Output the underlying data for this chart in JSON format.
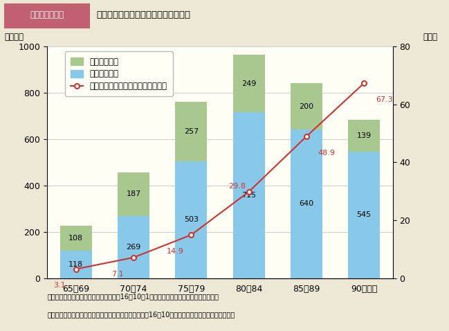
{
  "title_box": "第１－４－２図",
  "title_main": "年齢階級別の要支援・要介護認定者数",
  "categories": [
    "65～69",
    "70～74",
    "75～79",
    "80～84",
    "85～89",
    "90歳以上"
  ],
  "female_values": [
    118,
    269,
    503,
    715,
    640,
    545
  ],
  "male_values": [
    108,
    187,
    257,
    249,
    200,
    139
  ],
  "ratio_values": [
    3.1,
    7.1,
    14.9,
    29.8,
    48.9,
    67.3
  ],
  "female_color": "#88c8e8",
  "male_color": "#a8c890",
  "line_color": "#cc3333",
  "bar_width": 0.55,
  "ylim_left": [
    0,
    1000
  ],
  "ylim_right": [
    0,
    80
  ],
  "yticks_left": [
    0,
    200,
    400,
    600,
    800,
    1000
  ],
  "yticks_right": [
    0,
    20,
    40,
    60,
    80
  ],
  "ylabel_left": "（千人）",
  "ylabel_right": "（％）",
  "legend_male": "男性（千人）",
  "legend_female": "女性（千人）",
  "legend_ratio": "総人口に占める認定者の割合（％）",
  "note1": "（備考）１．総務省「人口推計」（平成16年10月1日現在），厚生労働省資料より作成。",
  "note2": "　　　　２．認定者数は，受給者台帳に登録された平成16年10月末時点の要支援，要介護の人数。",
  "bg_color": "#ede8d5",
  "plot_bg_color": "#fefef5",
  "header_bg": "#c06070",
  "header_text": "#ffffff",
  "grid_color": "#cccccc"
}
